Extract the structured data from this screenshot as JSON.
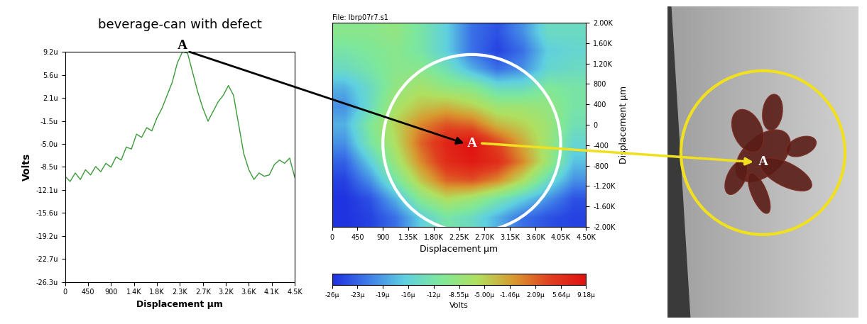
{
  "chart_data": [
    {
      "type": "line",
      "title": "beverage-can with defect",
      "x_label": "Displacement µm",
      "y_label": "Volts",
      "annotation": "A",
      "color": "#3a9a3a",
      "x": [
        0,
        100,
        200,
        300,
        400,
        500,
        600,
        700,
        800,
        900,
        1000,
        1100,
        1200,
        1300,
        1400,
        1500,
        1600,
        1700,
        1800,
        1900,
        2000,
        2100,
        2200,
        2300,
        2400,
        2500,
        2600,
        2700,
        2800,
        2900,
        3000,
        3100,
        3200,
        3300,
        3400,
        3500,
        3600,
        3700,
        3800,
        3900,
        4000,
        4100,
        4200,
        4300,
        4400,
        4500
      ],
      "values": [
        -1e-05,
        -1.08e-05,
        -9.5e-06,
        -1.05e-05,
        -9e-06,
        -9.8e-06,
        -8.5e-06,
        -9.3e-06,
        -8e-06,
        -8.6e-06,
        -7e-06,
        -7.5e-06,
        -5.5e-06,
        -5.8e-06,
        -3.5e-06,
        -4e-06,
        -2.5e-06,
        -3e-06,
        -1e-06,
        5e-07,
        2.5e-06,
        4.5e-06,
        7.5e-06,
        9.2e-06,
        9e-06,
        6e-06,
        3e-06,
        5e-07,
        -1.5e-06,
        0.0,
        1.5e-06,
        2.5e-06,
        4e-06,
        2.5e-06,
        -2e-06,
        -6.5e-06,
        -9e-06,
        -1.05e-05,
        -9.5e-06,
        -1e-05,
        -9.8e-06,
        -8.2e-06,
        -7.5e-06,
        -8e-06,
        -7.2e-06,
        -1.02e-05
      ],
      "xlim": [
        0,
        4500
      ],
      "xticks": [
        0,
        450,
        900,
        {
          "value": 1350,
          "label": "1.4K"
        },
        {
          "value": 1800,
          "label": "1.8K"
        },
        {
          "value": 2250,
          "label": "2.3K"
        },
        {
          "value": 2700,
          "label": "2.7K"
        },
        {
          "value": 3150,
          "label": "3.2K"
        },
        {
          "value": 3600,
          "label": "3.6K"
        },
        {
          "value": 4050,
          "label": "4.1K"
        },
        {
          "value": 4500,
          "label": "4.5K"
        }
      ],
      "ylim": [
        -2.63e-05,
        9.2e-06
      ],
      "yticks": [
        {
          "value": 9.2e-06,
          "label": "9.2u"
        },
        {
          "value": 5.6e-06,
          "label": "5.6u"
        },
        {
          "value": 2.1e-06,
          "label": "2.1u"
        },
        {
          "value": -1.5e-06,
          "label": "-1.5u"
        },
        {
          "value": -5e-06,
          "label": "-5.0u"
        },
        {
          "value": -8.5e-06,
          "label": "-8.5u"
        },
        {
          "value": -1.21e-05,
          "label": "-12.1u"
        },
        {
          "value": -1.56e-05,
          "label": "-15.6u"
        },
        {
          "value": -1.92e-05,
          "label": "-19.2u"
        },
        {
          "value": -2.27e-05,
          "label": "-22.7u"
        },
        {
          "value": -2.63e-05,
          "label": "-26.3u"
        }
      ]
    },
    {
      "type": "heatmap",
      "title": "File: lbrp07r7.s1",
      "x_label": "Displacement µm",
      "y_label": "Displacement µm",
      "annotation": "A",
      "cells": [
        [
          -1e-05,
          -1e-05,
          -9e-06,
          -1.2e-05,
          -1.6e-05,
          -2.2e-05,
          -2.4e-05,
          -2e-05,
          -1.4e-05,
          -1.4e-05
        ],
        [
          -1.2e-05,
          -1.1e-05,
          -1e-05,
          -1.2e-05,
          -1.6e-05,
          -2.2e-05,
          -2.5e-05,
          -2.2e-05,
          -1.6e-05,
          -1.5e-05
        ],
        [
          -1.4e-05,
          -1.2e-05,
          -1e-05,
          -1e-05,
          -1.3e-05,
          -1.8e-05,
          -2.2e-05,
          -2e-05,
          -1.5e-05,
          -1.4e-05
        ],
        [
          -1.8e-05,
          -1.4e-05,
          -9e-06,
          -7e-06,
          -9e-06,
          -1e-05,
          -1.4e-05,
          -1.4e-05,
          -1.1e-05,
          -1.2e-05
        ],
        [
          -2e-05,
          -1.4e-05,
          -7e-06,
          -4e-06,
          -3e-06,
          -5e-06,
          -8e-06,
          -8e-06,
          -9e-06,
          -1.2e-05
        ],
        [
          -1.8e-05,
          -1.1e-05,
          -5e-06,
          0.0,
          3e-06,
          2e-06,
          -3e-06,
          -5e-06,
          -8e-06,
          -1.3e-05
        ],
        [
          -2e-05,
          -1.2e-05,
          -6e-06,
          2e-06,
          7e-06,
          9e-06,
          4e-06,
          -2e-06,
          -8e-06,
          -1.5e-05
        ],
        [
          -2.3e-05,
          -1.6e-05,
          -8e-06,
          0.0,
          6e-06,
          8e-06,
          6e-06,
          0.0,
          -8e-06,
          -1.7e-05
        ],
        [
          -2.5e-05,
          -2e-05,
          -1.2e-05,
          -4e-06,
          2e-06,
          3e-06,
          0.0,
          -6e-06,
          -1.4e-05,
          -2e-05
        ],
        [
          -2.6e-05,
          -2.4e-05,
          -1.8e-05,
          -1e-05,
          -6e-06,
          -8e-06,
          -1.2e-05,
          -1.6e-05,
          -2e-05,
          -2.4e-05
        ],
        [
          -2.6e-05,
          -2.5e-05,
          -2.2e-05,
          -1.6e-05,
          -1.2e-05,
          -1.4e-05,
          -1.8e-05,
          -2.2e-05,
          -2.4e-05,
          -2.5e-05
        ]
      ],
      "xlim": [
        0,
        4500
      ],
      "xticks": [
        0,
        450,
        900,
        {
          "value": 1350,
          "label": "1.35K"
        },
        {
          "value": 1800,
          "label": "1.80K"
        },
        {
          "value": 2250,
          "label": "2.25K"
        },
        {
          "value": 2700,
          "label": "2.70K"
        },
        {
          "value": 3150,
          "label": "3.15K"
        },
        {
          "value": 3600,
          "label": "3.60K"
        },
        {
          "value": 4050,
          "label": "4.05K"
        },
        {
          "value": 4500,
          "label": "4.50K"
        }
      ],
      "ylim": [
        -2000,
        2000
      ],
      "yticks": [
        {
          "value": 2000,
          "label": "2.00K"
        },
        {
          "value": 1600,
          "label": "1.60K"
        },
        {
          "value": 1200,
          "label": "1.20K"
        },
        800,
        400,
        0,
        -400,
        -800,
        {
          "value": -1200,
          "label": "-1.20K"
        },
        {
          "value": -1600,
          "label": "-1.60K"
        },
        {
          "value": -2000,
          "label": "-2.00K"
        }
      ],
      "colorbar_label": "Volts",
      "colorbar_range": [
        -2.63e-05,
        9.18e-06
      ],
      "colorbar_ticks": [
        {
          "value": -2.63e-05,
          "label": "-26µ"
        },
        {
          "value": -2.275e-05,
          "label": "-23µ"
        },
        {
          "value": -1.92e-05,
          "label": "-19µ"
        },
        {
          "value": -1.565e-05,
          "label": "-16µ"
        },
        {
          "value": -1.21e-05,
          "label": "-12µ"
        },
        {
          "value": -8.55e-06,
          "label": "-8.55µ"
        },
        {
          "value": -5e-06,
          "label": "-5.00µ"
        },
        {
          "value": -1.46e-06,
          "label": "-1.46µ"
        },
        {
          "value": 2.09e-06,
          "label": "2.09µ"
        },
        {
          "value": 5.64e-06,
          "label": "5.64µ"
        },
        {
          "value": 9.18e-06,
          "label": "9.18µ"
        }
      ]
    },
    {
      "type": "image",
      "annotation": "A"
    }
  ]
}
